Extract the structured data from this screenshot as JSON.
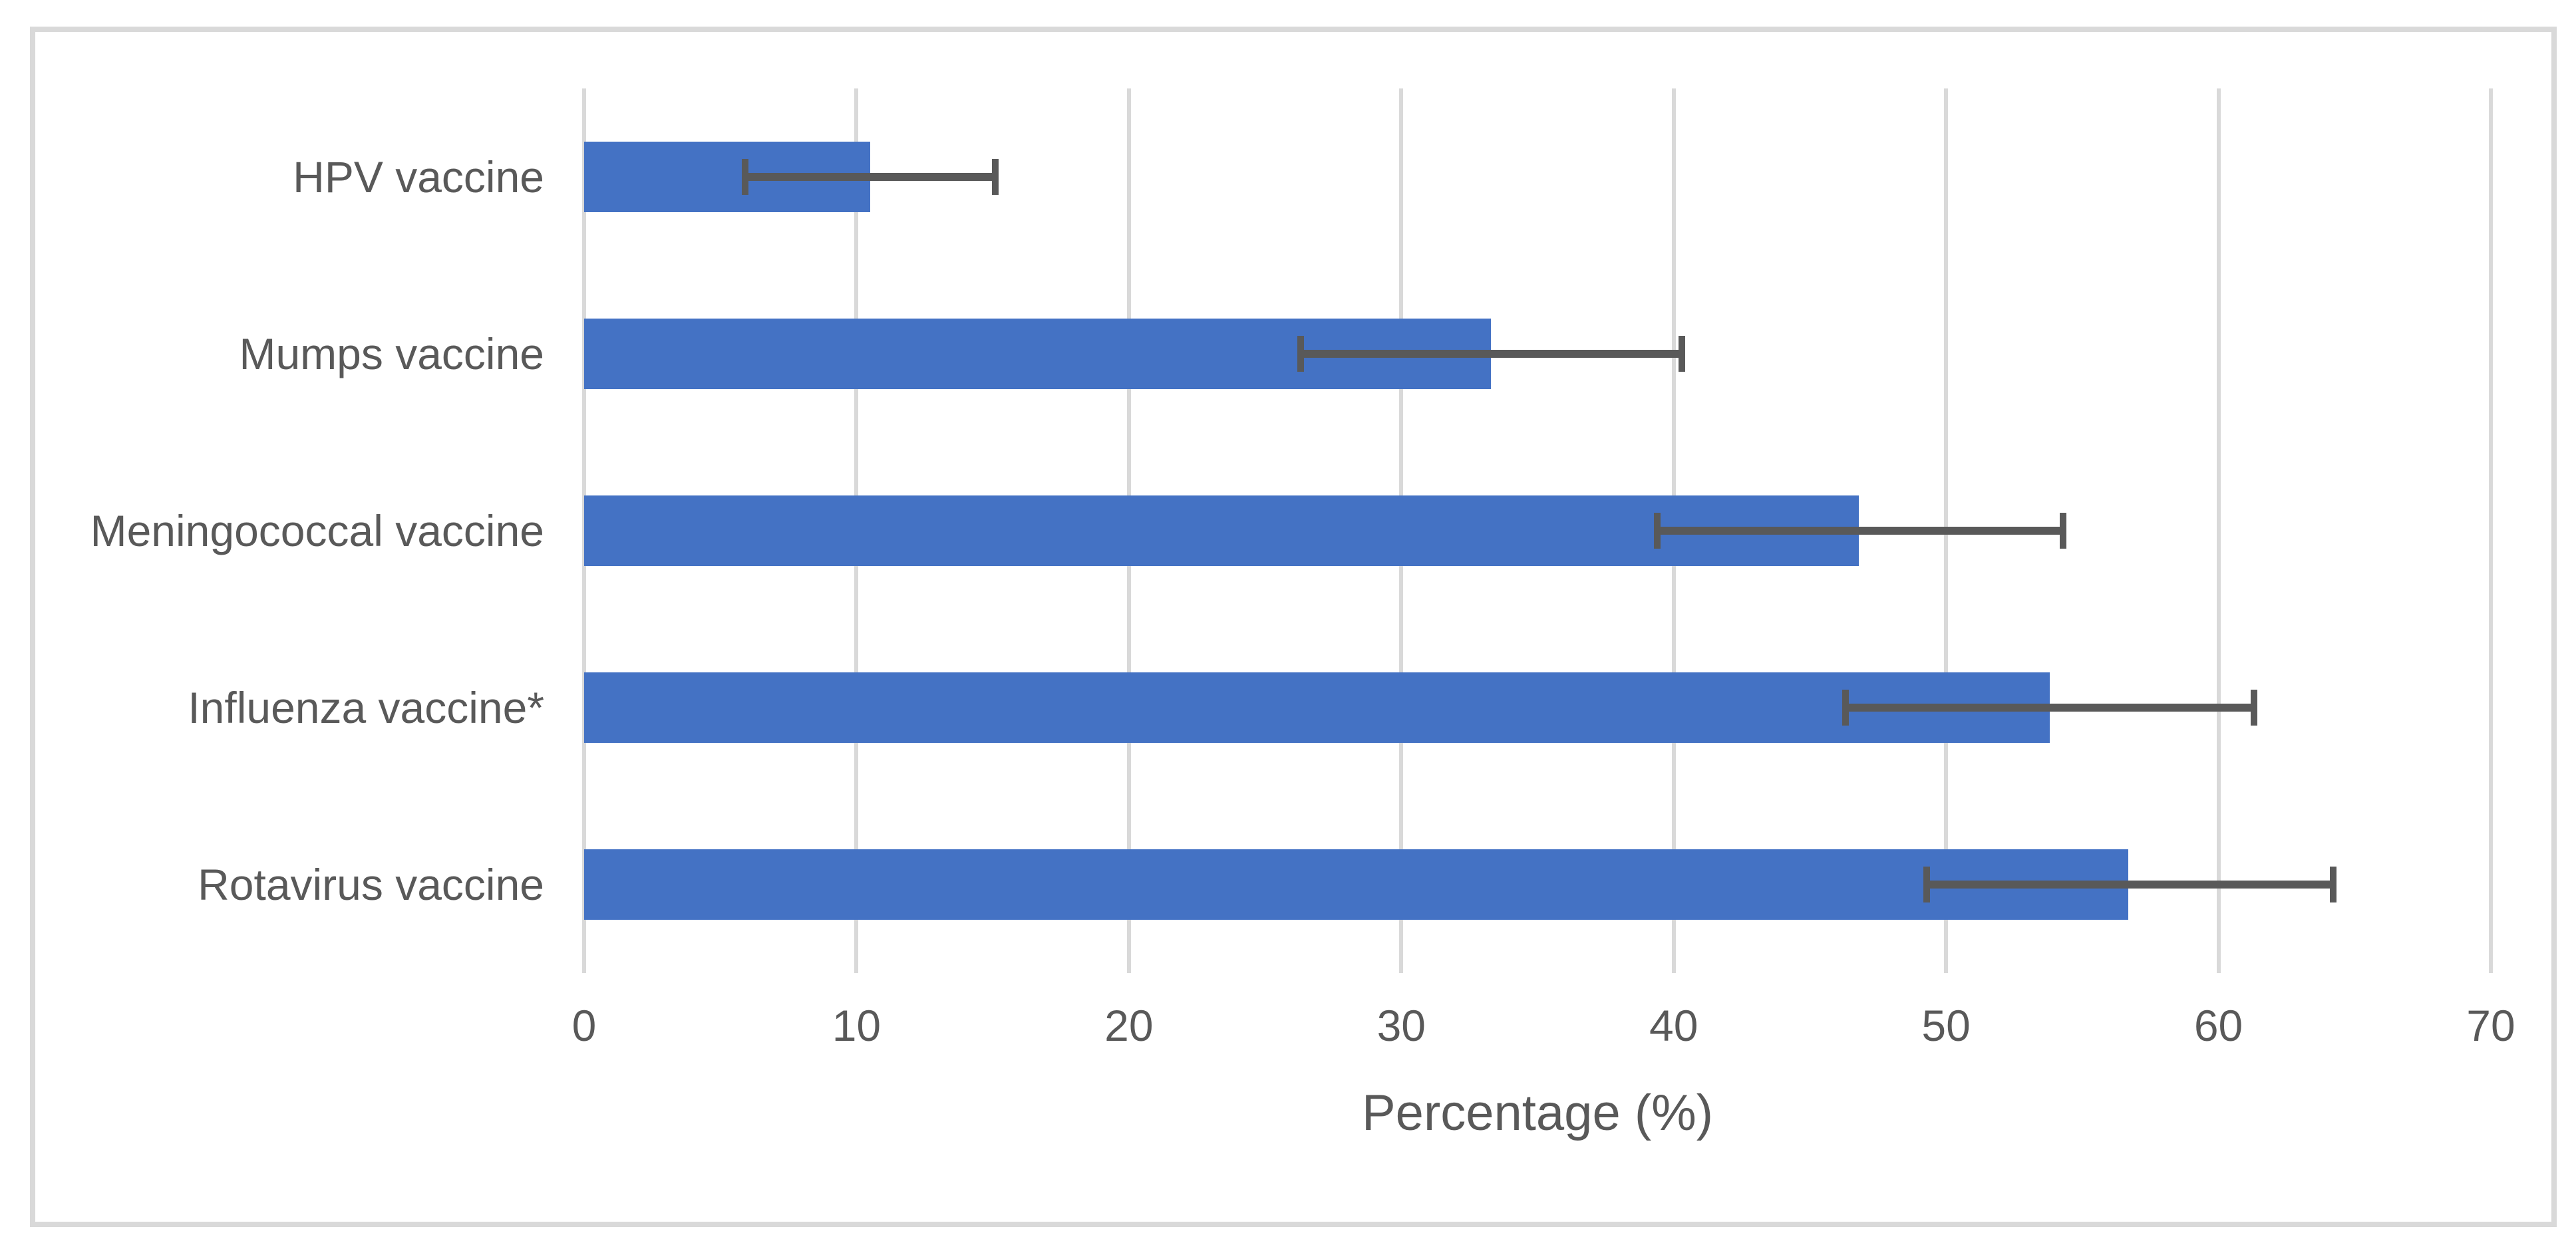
{
  "chart_data": {
    "type": "bar",
    "orientation": "horizontal",
    "title": "",
    "xlabel": "Percentage (%)",
    "ylabel": "",
    "categories": [
      "HPV vaccine",
      "Mumps vaccine",
      "Meningococcal vaccine",
      "Influenza vaccine*",
      "Rotavirus vaccine"
    ],
    "values": [
      10.5,
      33.3,
      46.8,
      53.8,
      56.7
    ],
    "error_low": [
      5.9,
      26.3,
      39.4,
      46.3,
      49.3
    ],
    "error_high": [
      15.1,
      40.3,
      54.3,
      61.3,
      64.2
    ],
    "xlim": [
      0,
      70
    ],
    "xticks": [
      0,
      10,
      20,
      30,
      40,
      50,
      60,
      70
    ],
    "grid": "vertical-major",
    "legend_position": "none",
    "colors": {
      "bar": "#4472C4",
      "error_bar": "#595959",
      "gridline": "#D9D9D9",
      "text": "#595959",
      "frame_border": "#D9D9D9",
      "background": "#FFFFFF"
    }
  }
}
